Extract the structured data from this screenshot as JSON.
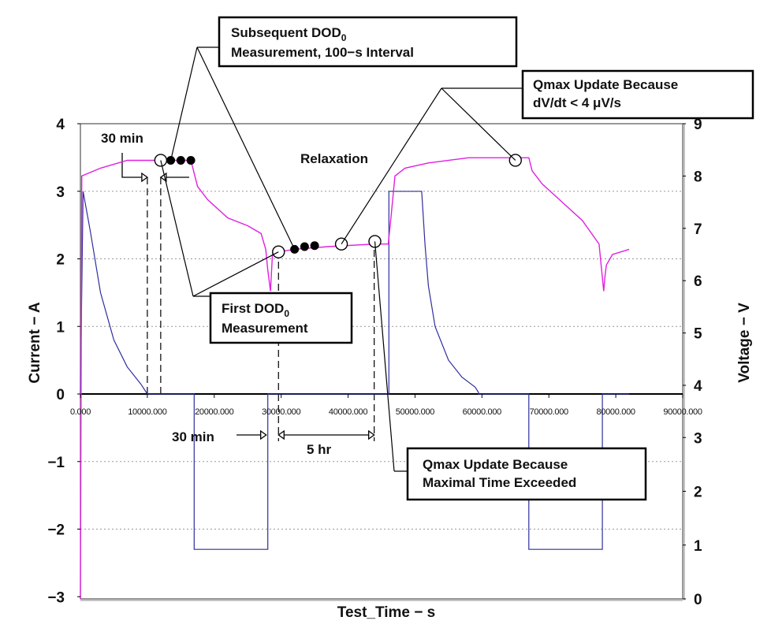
{
  "chart_data": {
    "type": "line",
    "title": "",
    "xlabel": "Test_Time − s",
    "ylabel_left": "Current − A",
    "ylabel_right": "Voltage − V",
    "x_range": [
      0,
      90000
    ],
    "x_ticks": [
      0,
      10000,
      20000,
      30000,
      40000,
      50000,
      60000,
      70000,
      80000,
      90000
    ],
    "x_tick_labels": [
      "0.000",
      "10000.000",
      "20000.000",
      "30000.000",
      "40000.000",
      "50000.000",
      "60000.000",
      "70000.000",
      "80000.000",
      "90000.000"
    ],
    "left_axis": {
      "range": [
        -3,
        4
      ],
      "ticks": [
        "4",
        "3",
        "2",
        "1",
        "0",
        "−1",
        "−2",
        "−3"
      ],
      "tick_values": [
        4,
        3,
        2,
        1,
        0,
        -1,
        -2,
        -3
      ]
    },
    "right_axis": {
      "range": [
        0,
        9
      ],
      "ticks": [
        "9",
        "8",
        "7",
        "6",
        "5",
        "4",
        "3",
        "2",
        "1",
        "0"
      ],
      "tick_values": [
        9,
        8,
        7,
        6,
        5,
        4,
        3,
        2,
        1,
        0
      ]
    },
    "series": [
      {
        "name": "Current",
        "axis": "left",
        "color": "#2e2e9e",
        "x": [
          0,
          400,
          1500,
          3000,
          5000,
          7000,
          9000,
          10000,
          10001,
          17000,
          17001,
          28000,
          28001,
          46100,
          46101,
          51000,
          51500,
          52000,
          53000,
          55000,
          57000,
          59000,
          59500,
          59501,
          67000,
          67001,
          78000,
          78001,
          82000
        ],
        "values": [
          0,
          3,
          2.4,
          1.5,
          0.8,
          0.4,
          0.15,
          0,
          0,
          0,
          -2.3,
          -2.3,
          0,
          0,
          3,
          3,
          2.2,
          1.6,
          1.0,
          0.5,
          0.25,
          0.1,
          0.02,
          0,
          0,
          -2.3,
          -2.3,
          0,
          0
        ]
      },
      {
        "name": "Voltage",
        "axis": "right",
        "color": "#e020e0",
        "x": [
          0,
          200,
          3000,
          7000,
          11000,
          13000,
          16500,
          17500,
          19000,
          22000,
          25000,
          27000,
          27700,
          28000,
          28400,
          28700,
          29500,
          32000,
          37000,
          44000,
          46000,
          46400,
          47000,
          48500,
          52000,
          58000,
          63000,
          67000,
          67500,
          69000,
          72000,
          75000,
          77500,
          78200,
          78400,
          78600,
          79500,
          82000
        ],
        "values": [
          0,
          8.0,
          8.15,
          8.3,
          8.3,
          8.3,
          8.3,
          7.8,
          7.55,
          7.2,
          7.05,
          6.9,
          6.6,
          6.2,
          5.8,
          6.5,
          6.55,
          6.6,
          6.65,
          6.7,
          6.7,
          7.2,
          8.0,
          8.15,
          8.25,
          8.35,
          8.35,
          8.35,
          8.1,
          7.85,
          7.5,
          7.15,
          6.7,
          5.8,
          6.1,
          6.3,
          6.5,
          6.6
        ]
      }
    ],
    "gridlines": "horizontal dotted",
    "annotations": {
      "open_markers": {
        "x": [
          12000,
          29600,
          39000,
          44000,
          65000
        ],
        "voltage": [
          8.3,
          6.55,
          6.7,
          6.75,
          8.3
        ]
      },
      "filled_markers": {
        "x": [
          13500,
          15000,
          16500,
          32000,
          33500,
          35000
        ],
        "voltage": [
          8.3,
          8.3,
          8.3,
          6.6,
          6.65,
          6.67
        ]
      },
      "dashed_guides_x": [
        10000,
        12000,
        29600,
        43900
      ],
      "labels": {
        "relaxation": "Relaxation",
        "thirty_min_top": "30 min",
        "thirty_min_bottom": "30 min",
        "five_hr": "5 hr"
      },
      "callouts": {
        "subsequent_line1": "Subsequent DOD",
        "subsequent_sub": "0",
        "subsequent_line2": "Measurement, 100−s Interval",
        "qmax_dvdt_line1": "Qmax Update Because",
        "qmax_dvdt_line2": "dV/dt < 4 μV/s",
        "first_line1": "First DOD",
        "first_sub": "0",
        "first_line2": "Measurement",
        "qmax_time_line1": "Qmax Update Because",
        "qmax_time_line2": "Maximal Time Exceeded"
      }
    }
  }
}
